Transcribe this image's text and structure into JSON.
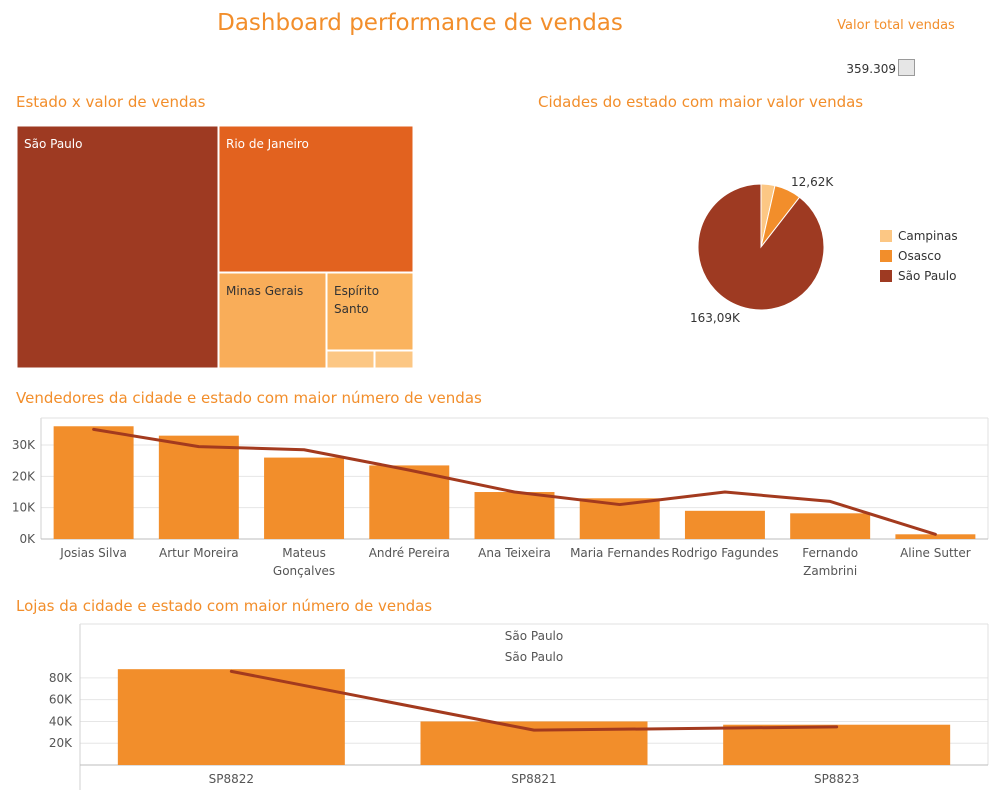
{
  "dashboard": {
    "title": "Dashboard performance de vendas",
    "kpi": {
      "title": "Valor total vendas",
      "value": "359.309"
    }
  },
  "colors": {
    "accent": "#f28e2b",
    "dark": "#9e3a22",
    "medium": "#e2621f",
    "light": "#f9ad59",
    "pale": "#fcc784",
    "line": "#a33a1e",
    "grid": "#e6e6e6"
  },
  "chart_data": [
    {
      "id": "treemap",
      "type": "treemap",
      "title": "Estado x valor de vendas",
      "items": [
        {
          "name": "São Paulo",
          "label": "São Paulo",
          "color": "#9e3a22"
        },
        {
          "name": "Rio de Janeiro",
          "label": "Rio de Janeiro",
          "color": "#e2621f"
        },
        {
          "name": "Minas Gerais",
          "label": "Minas Gerais",
          "color": "#f9ad59"
        },
        {
          "name": "Espírito Santo",
          "label": "Espírito Santo",
          "color": "#fab35e"
        },
        {
          "name": "small-1",
          "label": "",
          "color": "#fcc784"
        },
        {
          "name": "small-2",
          "label": "",
          "color": "#fcc784"
        }
      ]
    },
    {
      "id": "pie",
      "type": "pie",
      "title": "Cidades do estado com maior valor vendas",
      "slices": [
        {
          "name": "Campinas",
          "value": 6.5,
          "color": "#fcc784"
        },
        {
          "name": "Osasco",
          "value": 12.62,
          "color": "#f28e2b",
          "label": "12,62K"
        },
        {
          "name": "São Paulo",
          "value": 163.09,
          "color": "#9e3a22",
          "label": "163,09K"
        }
      ],
      "legend": [
        "Campinas",
        "Osasco",
        "São Paulo"
      ]
    },
    {
      "id": "sellers",
      "type": "bar",
      "title": "Vendedores da cidade e estado com maior número de vendas",
      "categories": [
        [
          "Josias Silva"
        ],
        [
          "Artur Moreira"
        ],
        [
          "Mateus",
          "Gonçalves"
        ],
        [
          "André Pereira"
        ],
        [
          "Ana Teixeira"
        ],
        [
          "Maria Fernandes"
        ],
        [
          "Rodrigo Fagundes"
        ],
        [
          "Fernando",
          "Zambrini"
        ],
        [
          "Aline Sutter"
        ]
      ],
      "values": [
        36000,
        33000,
        26000,
        23500,
        15000,
        13000,
        9000,
        8200,
        1500
      ],
      "line_values": [
        35000,
        29500,
        28500,
        22000,
        15000,
        11000,
        15000,
        12000,
        1500
      ],
      "yticks": [
        0,
        10000,
        20000,
        30000
      ],
      "ytick_labels": [
        "0K",
        "10K",
        "20K",
        "30K"
      ],
      "ylim": [
        0,
        38000
      ]
    },
    {
      "id": "stores",
      "type": "bar",
      "title": "Lojas da cidade e estado com maior número de vendas",
      "header": [
        "São Paulo",
        "São Paulo"
      ],
      "categories": [
        [
          "SP8822"
        ],
        [
          "SP8821"
        ],
        [
          "SP8823"
        ]
      ],
      "values": [
        88000,
        40000,
        37000
      ],
      "line_values": [
        86000,
        32000,
        35000
      ],
      "yticks": [
        20000,
        40000,
        60000,
        80000
      ],
      "ytick_labels": [
        "20K",
        "40K",
        "60K",
        "80K"
      ],
      "ylim": [
        0,
        90000
      ]
    }
  ]
}
